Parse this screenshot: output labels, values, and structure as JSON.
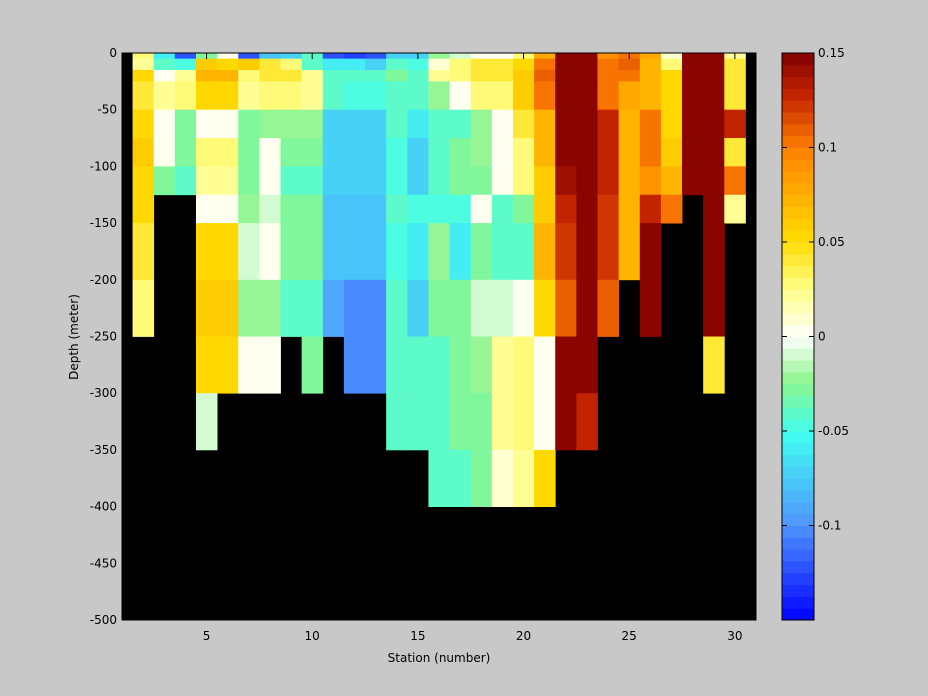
{
  "chart_data": {
    "type": "heatmap",
    "title": "",
    "xlabel": "Station (number)",
    "ylabel": "Depth (meter)",
    "xlim": [
      1,
      31
    ],
    "ylim": [
      -500,
      0
    ],
    "x_ticks": [
      5,
      10,
      15,
      20,
      25,
      30
    ],
    "y_ticks": [
      0,
      -50,
      -100,
      -150,
      -200,
      -250,
      -300,
      -350,
      -400,
      -450,
      -500
    ],
    "y_tick_labels": [
      "0",
      "-50",
      "-100",
      "-150",
      "-200",
      "-250",
      "-300",
      "-350",
      "-400",
      "-450",
      "-500"
    ],
    "colorbar": {
      "clim": [
        -0.15,
        0.15
      ],
      "ticks": [
        0.15,
        0.1,
        0.05,
        0,
        -0.05,
        -0.1
      ],
      "tick_labels": [
        "0.15",
        "0.1",
        "0.05",
        "0",
        "-0.05",
        "-0.1"
      ],
      "colormap": "jet-white-centered",
      "levels": 48
    },
    "no_data_color": "#000000",
    "depth_levels": [
      0,
      -5,
      -15,
      -25,
      -50,
      -75,
      -100,
      -125,
      -150,
      -200,
      -250,
      -300,
      -350,
      -400
    ],
    "stations": [
      2,
      3,
      4,
      5,
      6,
      7,
      8,
      9,
      10,
      11,
      12,
      13,
      14,
      15,
      16,
      17,
      18,
      19,
      20,
      21,
      22,
      23,
      24,
      25,
      26,
      27,
      28,
      29,
      30
    ],
    "values": [
      [
        0.03,
        -0.06,
        -0.12,
        -0.03,
        0.0,
        -0.12,
        -0.08,
        -0.07,
        -0.04,
        -0.12,
        -0.13,
        -0.12,
        -0.07,
        -0.07,
        -0.02,
        -0.01,
        0.0,
        0.0,
        0.03,
        0.08,
        0.15,
        0.15,
        0.09,
        0.1,
        0.08,
        0.01,
        0.15,
        0.15,
        0.02
      ],
      [
        0.02,
        -0.04,
        -0.05,
        0.06,
        0.05,
        0.06,
        0.04,
        0.03,
        -0.04,
        -0.06,
        -0.06,
        -0.07,
        -0.04,
        -0.05,
        0.01,
        0.03,
        0.04,
        0.04,
        0.05,
        0.1,
        0.15,
        0.15,
        0.1,
        0.11,
        0.07,
        0.03,
        0.15,
        0.15,
        0.04
      ],
      [
        0.05,
        0.0,
        0.02,
        0.07,
        0.07,
        0.03,
        0.04,
        0.04,
        0.02,
        -0.04,
        -0.04,
        -0.04,
        -0.03,
        -0.04,
        0.02,
        0.03,
        0.04,
        0.04,
        0.06,
        0.11,
        0.15,
        0.15,
        0.1,
        0.1,
        0.07,
        0.05,
        0.15,
        0.15,
        0.04
      ],
      [
        0.04,
        0.02,
        0.03,
        0.05,
        0.05,
        0.02,
        0.03,
        0.03,
        0.02,
        -0.04,
        -0.05,
        -0.05,
        -0.04,
        -0.04,
        -0.02,
        0.0,
        0.03,
        0.03,
        0.06,
        0.1,
        0.15,
        0.15,
        0.1,
        0.08,
        0.07,
        0.05,
        0.15,
        0.15,
        0.04
      ],
      [
        0.05,
        0.0,
        -0.03,
        0.0,
        0.0,
        -0.03,
        -0.02,
        -0.02,
        -0.02,
        -0.07,
        -0.07,
        -0.07,
        -0.04,
        -0.06,
        -0.04,
        -0.04,
        -0.02,
        0.0,
        0.04,
        0.07,
        0.15,
        0.15,
        0.13,
        0.07,
        0.1,
        0.05,
        0.15,
        0.15,
        0.13
      ],
      [
        0.06,
        0.0,
        -0.03,
        0.03,
        0.03,
        -0.03,
        0.0,
        -0.03,
        -0.03,
        -0.07,
        -0.07,
        -0.07,
        -0.05,
        -0.07,
        -0.04,
        -0.03,
        -0.02,
        0.0,
        0.03,
        0.07,
        0.15,
        0.15,
        0.13,
        0.07,
        0.1,
        0.06,
        0.15,
        0.15,
        0.04
      ],
      [
        0.05,
        -0.03,
        -0.04,
        0.02,
        0.02,
        -0.03,
        0.0,
        -0.04,
        -0.04,
        -0.07,
        -0.07,
        -0.07,
        -0.05,
        -0.07,
        -0.04,
        -0.03,
        -0.03,
        0.0,
        0.03,
        0.06,
        0.14,
        0.15,
        0.13,
        0.07,
        0.09,
        0.07,
        0.15,
        0.15,
        0.1
      ],
      [
        0.05,
        null,
        null,
        0.0,
        0.0,
        -0.02,
        -0.01,
        -0.03,
        -0.03,
        -0.08,
        -0.08,
        -0.08,
        -0.04,
        -0.05,
        -0.05,
        -0.05,
        0.0,
        -0.04,
        -0.03,
        0.06,
        0.13,
        0.15,
        0.12,
        0.07,
        0.13,
        0.1,
        null,
        0.15,
        0.02
      ],
      [
        0.04,
        null,
        null,
        0.05,
        0.05,
        -0.01,
        0.0,
        -0.03,
        -0.03,
        -0.08,
        -0.08,
        -0.08,
        -0.05,
        -0.06,
        -0.02,
        -0.06,
        -0.03,
        -0.04,
        -0.04,
        0.07,
        0.12,
        0.15,
        0.12,
        0.07,
        0.15,
        null,
        null,
        0.15,
        null
      ],
      [
        0.03,
        null,
        null,
        0.06,
        0.06,
        -0.02,
        -0.02,
        -0.04,
        -0.04,
        -0.09,
        -0.1,
        -0.1,
        -0.04,
        -0.07,
        -0.03,
        -0.03,
        -0.01,
        -0.01,
        0.0,
        0.05,
        0.11,
        0.15,
        0.11,
        null,
        0.15,
        null,
        null,
        0.15,
        null
      ],
      [
        null,
        null,
        null,
        0.05,
        0.05,
        0.0,
        0.0,
        null,
        -0.03,
        null,
        -0.1,
        -0.1,
        -0.04,
        -0.04,
        -0.04,
        -0.03,
        -0.02,
        0.02,
        0.03,
        0.0,
        0.15,
        0.15,
        null,
        null,
        null,
        null,
        null,
        0.04,
        null
      ],
      [
        null,
        null,
        null,
        -0.01,
        null,
        null,
        null,
        null,
        null,
        null,
        null,
        null,
        -0.04,
        -0.04,
        -0.04,
        -0.03,
        -0.03,
        0.02,
        0.03,
        0.0,
        0.15,
        0.13,
        null,
        null,
        null,
        null,
        null,
        null,
        null
      ],
      [
        null,
        null,
        null,
        null,
        null,
        null,
        null,
        null,
        null,
        null,
        null,
        null,
        null,
        null,
        -0.04,
        -0.04,
        -0.03,
        0.01,
        0.02,
        0.05,
        null,
        null,
        null,
        null,
        null,
        null,
        null,
        null,
        null
      ]
    ]
  }
}
